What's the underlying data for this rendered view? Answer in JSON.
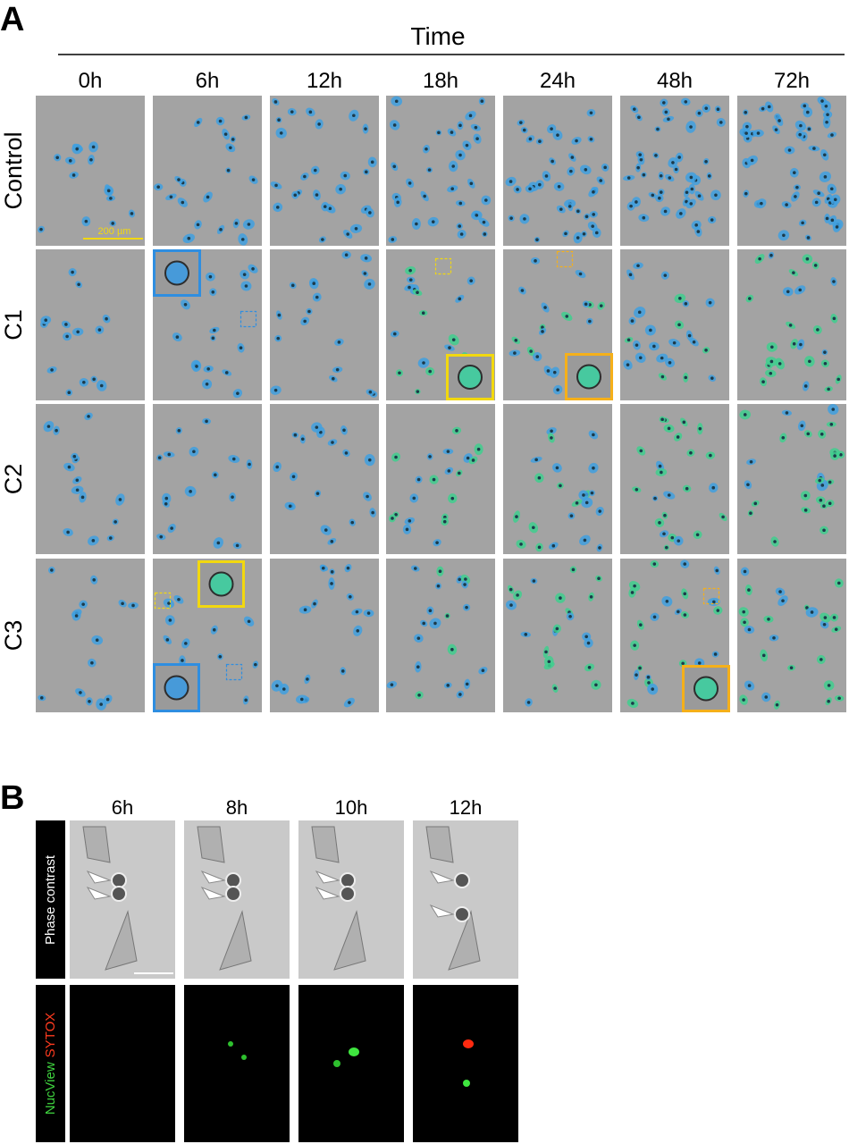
{
  "panel_a": {
    "label": "A",
    "axis_title": "Time",
    "columns": [
      "0h",
      "6h",
      "12h",
      "18h",
      "24h",
      "48h",
      "72h"
    ],
    "rows": [
      "Control",
      "C1",
      "C2",
      "C3"
    ],
    "scale_bar": "200 µm"
  },
  "panel_b": {
    "label": "B",
    "columns": [
      "6h",
      "8h",
      "10h",
      "12h"
    ],
    "row_labels": {
      "phase": "Phase contrast",
      "stain_green": "NucView",
      "stain_red": "SYTOX"
    }
  }
}
